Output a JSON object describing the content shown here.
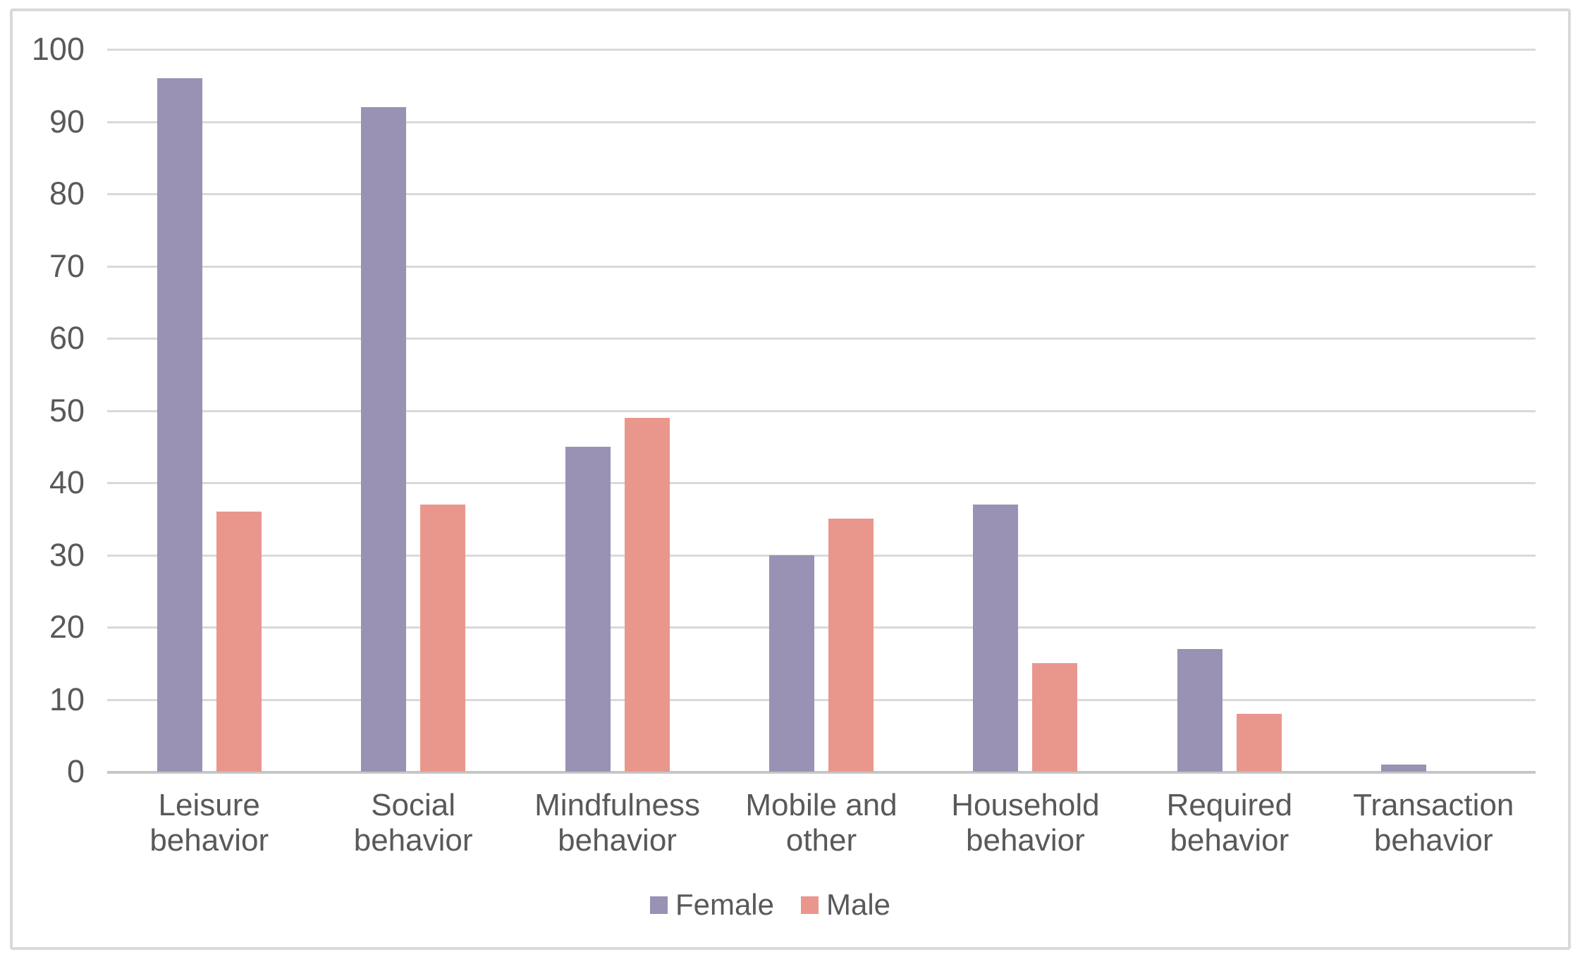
{
  "chart_data": {
    "type": "bar",
    "title": "",
    "xlabel": "",
    "ylabel": "",
    "categories": [
      "Leisure behavior",
      "Social behavior",
      "Mindfulness behavior",
      "Mobile and other",
      "Household behavior",
      "Required behavior",
      "Transaction behavior"
    ],
    "category_label_lines": [
      [
        "Leisure",
        "behavior"
      ],
      [
        "Social",
        "behavior"
      ],
      [
        "Mindfulness",
        "behavior"
      ],
      [
        "Mobile and",
        "other"
      ],
      [
        "Household",
        "behavior"
      ],
      [
        "Required",
        "behavior"
      ],
      [
        "Transaction",
        "behavior"
      ]
    ],
    "series": [
      {
        "name": "Female",
        "color": "#9992b4",
        "values": [
          96,
          92,
          45,
          30,
          37,
          17,
          1
        ]
      },
      {
        "name": "Male",
        "color": "#e9978d",
        "values": [
          36,
          37,
          49,
          35,
          15,
          8,
          0
        ]
      }
    ],
    "ylim": [
      0,
      100
    ],
    "ytick_step": 10,
    "ytick_labels": [
      "0",
      "10",
      "20",
      "30",
      "40",
      "50",
      "60",
      "70",
      "80",
      "90",
      "100"
    ],
    "grid": true,
    "legend_position": "bottom",
    "legend_entries": [
      "Female",
      "Male"
    ]
  },
  "colors": {
    "female_bar": "#9992b4",
    "male_bar": "#e9978d",
    "gridline": "#d9d9d9",
    "axis_line": "#c6c6c6",
    "frame_border": "#d9d9d9",
    "label_text": "#595959",
    "background": "#ffffff"
  }
}
